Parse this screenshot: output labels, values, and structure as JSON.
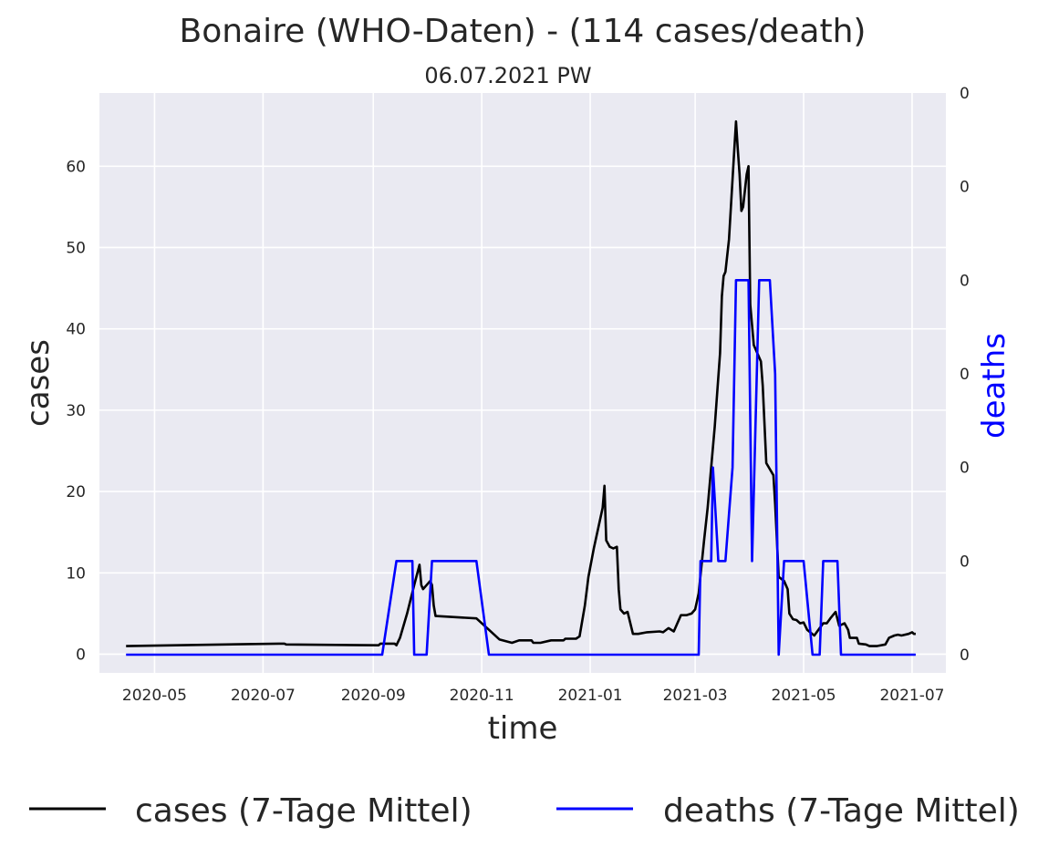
{
  "chart_data": {
    "type": "line",
    "title": "Bonaire (WHO-Daten) - (114 cases/death)",
    "subtitle": "06.07.2021 PW",
    "xlabel": "time",
    "ylabel": "cases",
    "y2label": "deaths",
    "x_range": [
      "2020-03-31",
      "2021-07-20"
    ],
    "x_ticks": [
      "2020-05",
      "2020-07",
      "2020-09",
      "2020-11",
      "2021-01",
      "2021-03",
      "2021-05",
      "2021-07"
    ],
    "ylim": [
      -2.3,
      69
    ],
    "y_ticks": [
      "0",
      "10",
      "20",
      "30",
      "40",
      "50",
      "60"
    ],
    "y2lim": [
      -0.0325,
      1.0
    ],
    "y2_ticks": [
      0,
      0.1667,
      0.3333,
      0.5,
      0.6667,
      0.8333,
      1.0
    ],
    "y2_tick_labels": [
      "0",
      "0",
      "0",
      "0",
      "0",
      "0",
      "0"
    ],
    "grid": true,
    "legend": "bottom-center",
    "colors": {
      "cases": "#000000",
      "deaths": "#0000ff",
      "plot_bg": "#eaeaf2",
      "grid": "#ffffff",
      "deaths_label": "#0000ff"
    },
    "series": [
      {
        "name": "cases (7-Tage Mittel)",
        "axis": "left",
        "color": "#000000",
        "points": [
          [
            "2020-04-15",
            1.0
          ],
          [
            "2020-07-10",
            1.3
          ],
          [
            "2020-07-13",
            1.3
          ],
          [
            "2020-07-14",
            1.2
          ],
          [
            "2020-09-04",
            1.1
          ],
          [
            "2020-09-05",
            1.3
          ],
          [
            "2020-09-13",
            1.3
          ],
          [
            "2020-09-14",
            1.1
          ],
          [
            "2020-09-16",
            2.0
          ],
          [
            "2020-09-20",
            5.0
          ],
          [
            "2020-09-24",
            8.5
          ],
          [
            "2020-09-27",
            11.0
          ],
          [
            "2020-09-28",
            8.5
          ],
          [
            "2020-09-29",
            8.0
          ],
          [
            "2020-10-01",
            8.5
          ],
          [
            "2020-10-03",
            9.0
          ],
          [
            "2020-10-04",
            8.5
          ],
          [
            "2020-10-05",
            6.0
          ],
          [
            "2020-10-06",
            4.7
          ],
          [
            "2020-10-29",
            4.4
          ],
          [
            "2020-11-05",
            3.0
          ],
          [
            "2020-11-11",
            1.8
          ],
          [
            "2020-11-18",
            1.4
          ],
          [
            "2020-11-22",
            1.7
          ],
          [
            "2020-11-29",
            1.7
          ],
          [
            "2020-11-30",
            1.4
          ],
          [
            "2020-12-04",
            1.4
          ],
          [
            "2020-12-10",
            1.7
          ],
          [
            "2020-12-17",
            1.7
          ],
          [
            "2020-12-18",
            1.9
          ],
          [
            "2020-12-24",
            1.9
          ],
          [
            "2020-12-26",
            2.2
          ],
          [
            "2020-12-29",
            6.0
          ],
          [
            "2020-12-31",
            9.5
          ],
          [
            "2021-01-03",
            13.0
          ],
          [
            "2021-01-06",
            16.0
          ],
          [
            "2021-01-08",
            18.0
          ],
          [
            "2021-01-09",
            20.7
          ],
          [
            "2021-01-10",
            14.0
          ],
          [
            "2021-01-12",
            13.2
          ],
          [
            "2021-01-14",
            13.0
          ],
          [
            "2021-01-16",
            13.2
          ],
          [
            "2021-01-17",
            8.0
          ],
          [
            "2021-01-18",
            5.5
          ],
          [
            "2021-01-20",
            5.0
          ],
          [
            "2021-01-22",
            5.2
          ],
          [
            "2021-01-25",
            2.5
          ],
          [
            "2021-01-28",
            2.5
          ],
          [
            "2021-02-02",
            2.7
          ],
          [
            "2021-02-09",
            2.8
          ],
          [
            "2021-02-11",
            2.7
          ],
          [
            "2021-02-14",
            3.2
          ],
          [
            "2021-02-17",
            2.8
          ],
          [
            "2021-02-21",
            4.8
          ],
          [
            "2021-02-24",
            4.8
          ],
          [
            "2021-02-27",
            5.0
          ],
          [
            "2021-03-01",
            5.5
          ],
          [
            "2021-03-03",
            7.5
          ],
          [
            "2021-03-06",
            14.0
          ],
          [
            "2021-03-08",
            18.0
          ],
          [
            "2021-03-12",
            28.0
          ],
          [
            "2021-03-15",
            37.0
          ],
          [
            "2021-03-16",
            44.0
          ],
          [
            "2021-03-17",
            46.5
          ],
          [
            "2021-03-18",
            47.0
          ],
          [
            "2021-03-20",
            51.0
          ],
          [
            "2021-03-23",
            62.0
          ],
          [
            "2021-03-24",
            65.5
          ],
          [
            "2021-03-25",
            62.0
          ],
          [
            "2021-03-26",
            59.0
          ],
          [
            "2021-03-27",
            54.5
          ],
          [
            "2021-03-28",
            55.0
          ],
          [
            "2021-03-30",
            59.0
          ],
          [
            "2021-03-31",
            60.0
          ],
          [
            "2021-04-01",
            43.0
          ],
          [
            "2021-04-03",
            38.0
          ],
          [
            "2021-04-07",
            36.0
          ],
          [
            "2021-04-08",
            33.0
          ],
          [
            "2021-04-10",
            23.5
          ],
          [
            "2021-04-14",
            22.0
          ],
          [
            "2021-04-15",
            18.5
          ],
          [
            "2021-04-17",
            9.5
          ],
          [
            "2021-04-20",
            9.0
          ],
          [
            "2021-04-22",
            8.0
          ],
          [
            "2021-04-23",
            5.0
          ],
          [
            "2021-04-25",
            4.3
          ],
          [
            "2021-04-27",
            4.2
          ],
          [
            "2021-04-29",
            3.8
          ],
          [
            "2021-05-01",
            3.9
          ],
          [
            "2021-05-03",
            3.0
          ],
          [
            "2021-05-07",
            2.3
          ],
          [
            "2021-05-11",
            3.5
          ],
          [
            "2021-05-12",
            3.8
          ],
          [
            "2021-05-14",
            3.8
          ],
          [
            "2021-05-16",
            4.4
          ],
          [
            "2021-05-19",
            5.2
          ],
          [
            "2021-05-21",
            3.5
          ],
          [
            "2021-05-24",
            3.8
          ],
          [
            "2021-05-26",
            3.0
          ],
          [
            "2021-05-27",
            2.0
          ],
          [
            "2021-05-31",
            2.0
          ],
          [
            "2021-06-01",
            1.3
          ],
          [
            "2021-06-05",
            1.2
          ],
          [
            "2021-06-07",
            1.0
          ],
          [
            "2021-06-11",
            1.0
          ],
          [
            "2021-06-16",
            1.2
          ],
          [
            "2021-06-18",
            2.0
          ],
          [
            "2021-06-21",
            2.3
          ],
          [
            "2021-06-23",
            2.4
          ],
          [
            "2021-06-25",
            2.3
          ],
          [
            "2021-06-29",
            2.5
          ],
          [
            "2021-07-01",
            2.7
          ],
          [
            "2021-07-02",
            2.5
          ],
          [
            "2021-07-03",
            2.5
          ]
        ]
      },
      {
        "name": "deaths (7-Tage Mittel)",
        "axis": "right",
        "color": "#0000ff",
        "points": [
          [
            "2020-04-15",
            0.0
          ],
          [
            "2020-09-06",
            0.0
          ],
          [
            "2020-09-14",
            0.1667
          ],
          [
            "2020-09-23",
            0.1667
          ],
          [
            "2020-09-24",
            0.0
          ],
          [
            "2020-10-01",
            0.0
          ],
          [
            "2020-10-04",
            0.1667
          ],
          [
            "2020-10-29",
            0.1667
          ],
          [
            "2020-11-05",
            0.0
          ],
          [
            "2021-03-03",
            0.0
          ],
          [
            "2021-03-04",
            0.1667
          ],
          [
            "2021-03-10",
            0.1667
          ],
          [
            "2021-03-11",
            0.3333
          ],
          [
            "2021-03-14",
            0.1667
          ],
          [
            "2021-03-18",
            0.1667
          ],
          [
            "2021-03-22",
            0.3333
          ],
          [
            "2021-03-24",
            0.6667
          ],
          [
            "2021-03-25",
            0.6667
          ],
          [
            "2021-03-31",
            0.6667
          ],
          [
            "2021-04-02",
            0.1667
          ],
          [
            "2021-04-06",
            0.6667
          ],
          [
            "2021-04-12",
            0.6667
          ],
          [
            "2021-04-15",
            0.5
          ],
          [
            "2021-04-17",
            0.0
          ],
          [
            "2021-04-20",
            0.1667
          ],
          [
            "2021-05-01",
            0.1667
          ],
          [
            "2021-05-06",
            0.0
          ],
          [
            "2021-05-10",
            0.0
          ],
          [
            "2021-05-12",
            0.1667
          ],
          [
            "2021-05-20",
            0.1667
          ],
          [
            "2021-05-22",
            0.0
          ],
          [
            "2021-07-03",
            0.0
          ]
        ]
      }
    ]
  }
}
